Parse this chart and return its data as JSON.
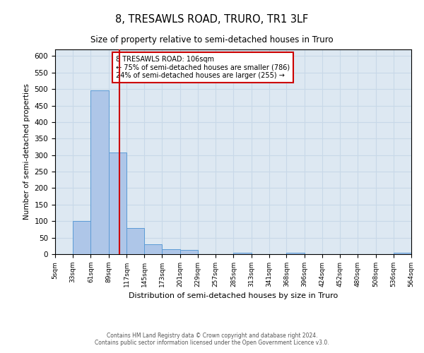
{
  "title": "8, TRESAWLS ROAD, TRURO, TR1 3LF",
  "subtitle": "Size of property relative to semi-detached houses in Truro",
  "xlabel": "Distribution of semi-detached houses by size in Truro",
  "ylabel": "Number of semi-detached properties",
  "bin_edges": [
    5,
    33,
    61,
    89,
    117,
    145,
    173,
    201,
    229,
    257,
    285,
    313,
    341,
    368,
    396,
    424,
    452,
    480,
    508,
    536,
    564
  ],
  "bar_heights": [
    0,
    100,
    495,
    308,
    80,
    30,
    15,
    12,
    0,
    0,
    5,
    0,
    0,
    5,
    0,
    0,
    0,
    0,
    0,
    5
  ],
  "bar_color": "#aec6e8",
  "bar_edgecolor": "#5b9bd5",
  "property_size": 106,
  "annotation_title": "8 TRESAWLS ROAD: 106sqm",
  "annotation_line1": "← 75% of semi-detached houses are smaller (786)",
  "annotation_line2": "24% of semi-detached houses are larger (255) →",
  "annotation_box_edgecolor": "#cc0000",
  "vline_color": "#cc0000",
  "ylim": [
    0,
    620
  ],
  "yticks": [
    0,
    50,
    100,
    150,
    200,
    250,
    300,
    350,
    400,
    450,
    500,
    550,
    600
  ],
  "tick_labels": [
    "5sqm",
    "33sqm",
    "61sqm",
    "89sqm",
    "117sqm",
    "145sqm",
    "173sqm",
    "201sqm",
    "229sqm",
    "257sqm",
    "285sqm",
    "313sqm",
    "341sqm",
    "368sqm",
    "396sqm",
    "424sqm",
    "452sqm",
    "480sqm",
    "508sqm",
    "536sqm",
    "564sqm"
  ],
  "footer_line1": "Contains HM Land Registry data © Crown copyright and database right 2024.",
  "footer_line2": "Contains public sector information licensed under the Open Government Licence v3.0.",
  "grid_color": "#c8d8e8",
  "background_color": "#dde8f2",
  "fig_width": 6.0,
  "fig_height": 5.0,
  "dpi": 100
}
